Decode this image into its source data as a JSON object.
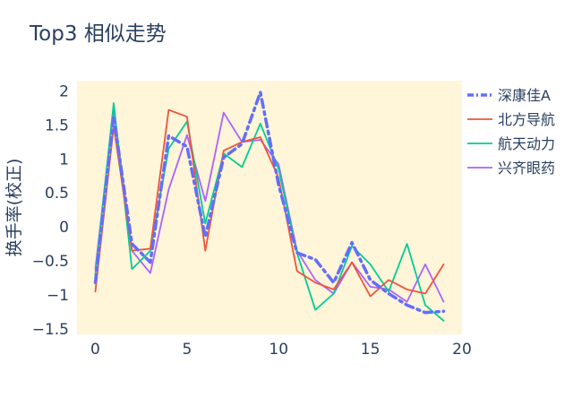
{
  "chart_data": {
    "type": "line",
    "title": "Top3 相似走势",
    "xlabel": "",
    "ylabel": "换手率(校正)",
    "xlim": [
      -1,
      20
    ],
    "ylim": [
      -1.58,
      2.15
    ],
    "xticks": [
      0,
      5,
      10,
      15,
      20
    ],
    "yticks": [
      -1.5,
      -1,
      -0.5,
      0,
      0.5,
      1,
      1.5,
      2
    ],
    "ytick_labels": [
      "−1.5",
      "−1",
      "−0.5",
      "0",
      "0.5",
      "1",
      "1.5",
      "2"
    ],
    "grid": false,
    "legend_position": "right",
    "plot_bgcolor": "#fff5d9",
    "series": [
      {
        "name": "深康佳A",
        "color": "#636efa",
        "dash": "dashdot",
        "width": 3.5,
        "x": [
          0,
          1,
          2,
          3,
          4,
          5,
          6,
          7,
          8,
          9,
          10,
          11,
          12,
          13,
          14,
          15,
          16,
          17,
          18,
          19
        ],
        "y": [
          -0.82,
          1.62,
          -0.25,
          -0.52,
          1.34,
          1.18,
          -0.15,
          1.02,
          1.22,
          1.98,
          0.62,
          -0.38,
          -0.48,
          -0.82,
          -0.23,
          -0.78,
          -0.98,
          -1.15,
          -1.26,
          -1.24
        ]
      },
      {
        "name": "北方导航",
        "color": "#ef553b",
        "dash": "solid",
        "width": 1.8,
        "x": [
          0,
          1,
          2,
          3,
          4,
          5,
          6,
          7,
          8,
          9,
          10,
          11,
          12,
          13,
          14,
          15,
          16,
          17,
          18,
          19
        ],
        "y": [
          -0.95,
          1.48,
          -0.35,
          -0.32,
          1.72,
          1.62,
          -0.35,
          1.12,
          1.25,
          1.32,
          0.72,
          -0.65,
          -0.82,
          -0.92,
          -0.52,
          -1.02,
          -0.78,
          -0.92,
          -0.98,
          -0.55
        ]
      },
      {
        "name": "航天动力",
        "color": "#00cc96",
        "dash": "solid",
        "width": 1.8,
        "x": [
          0,
          1,
          2,
          3,
          4,
          5,
          6,
          7,
          8,
          9,
          10,
          11,
          12,
          13,
          14,
          15,
          16,
          17,
          18,
          19
        ],
        "y": [
          -0.7,
          1.82,
          -0.62,
          -0.35,
          1.15,
          1.55,
          0.05,
          1.08,
          0.88,
          1.52,
          0.85,
          -0.38,
          -1.22,
          -0.98,
          -0.28,
          -0.55,
          -0.95,
          -0.25,
          -1.15,
          -1.38
        ]
      },
      {
        "name": "兴齐眼药",
        "color": "#ab63fa",
        "dash": "solid",
        "width": 1.8,
        "x": [
          0,
          1,
          2,
          3,
          4,
          5,
          6,
          7,
          8,
          9,
          10,
          11,
          12,
          13,
          14,
          15,
          16,
          17,
          18,
          19
        ],
        "y": [
          -0.62,
          1.75,
          -0.35,
          -0.68,
          0.55,
          1.35,
          0.38,
          1.68,
          1.25,
          1.28,
          0.92,
          -0.35,
          -0.78,
          -0.98,
          -0.52,
          -0.88,
          -0.92,
          -1.1,
          -0.55,
          -1.1
        ]
      }
    ]
  }
}
